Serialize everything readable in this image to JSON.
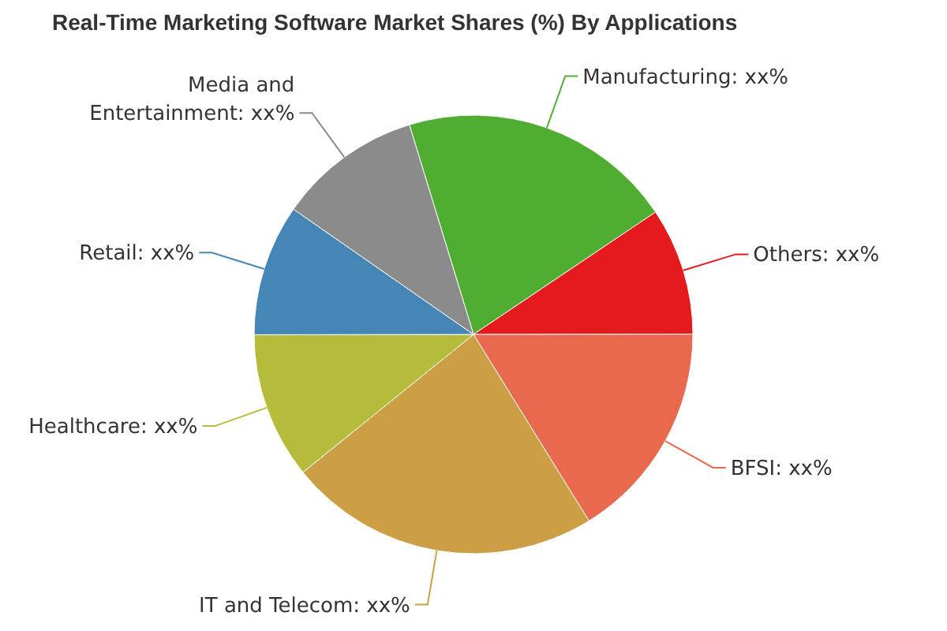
{
  "chart_data": {
    "type": "pie",
    "title": "Real-Time Marketing Software Market Shares (%) By Applications",
    "categories": [
      "Manufacturing",
      "Others",
      "BFSI",
      "IT and Telecom",
      "Healthcare",
      "Retail",
      "Media and Entertainment"
    ],
    "values": [
      20.3,
      9.4,
      16.2,
      23.0,
      10.8,
      9.7,
      10.6
    ],
    "colors": [
      "#4fae32",
      "#e41a1c",
      "#e8694e",
      "#cc9f45",
      "#b5bb3a",
      "#4586b6",
      "#8b8b8b"
    ],
    "value_labels": [
      "xx%",
      "xx%",
      "xx%",
      "xx%",
      "xx%",
      "xx%",
      "xx%"
    ]
  }
}
